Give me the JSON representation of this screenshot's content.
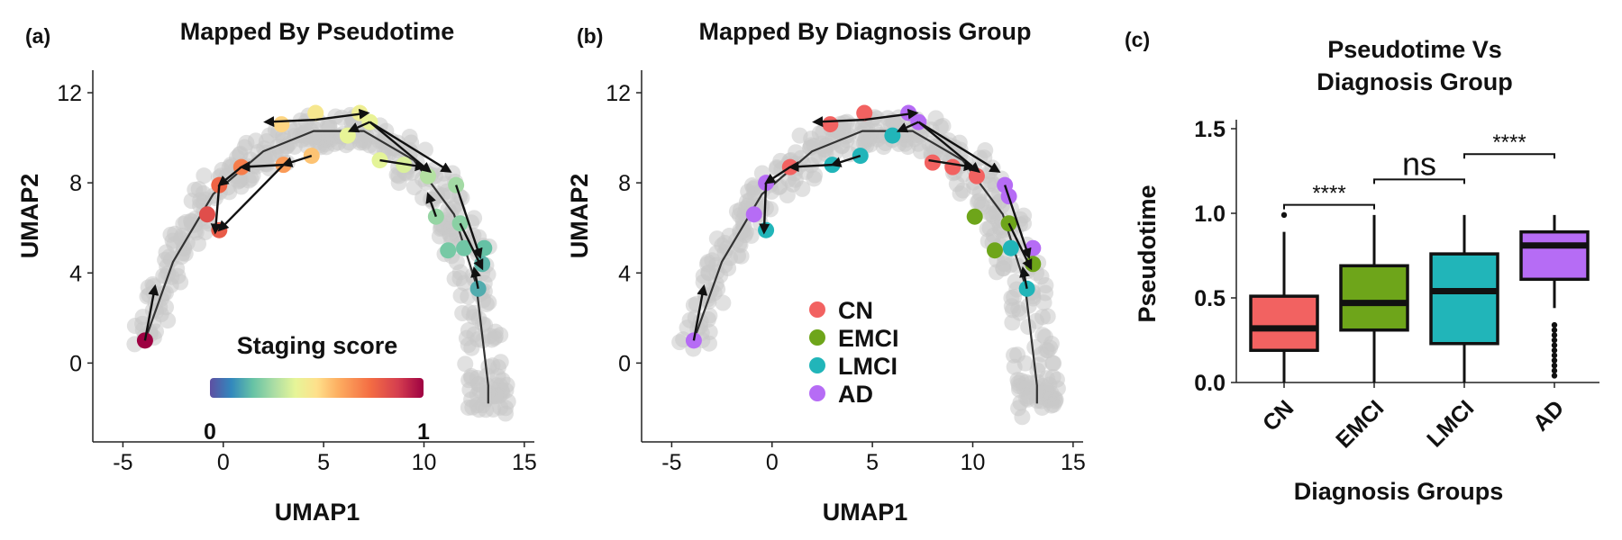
{
  "chart_data": [
    {
      "panel": "(a)",
      "type": "scatter",
      "title": "Mapped By Pseudotime",
      "xlabel": "UMAP1",
      "ylabel": "UMAP2",
      "xlim": [
        -6.5,
        15.5
      ],
      "ylim": [
        -3.5,
        13
      ],
      "xticks": [
        -5,
        0,
        5,
        10,
        15
      ],
      "xtick_labels": [
        "-5",
        "0",
        "5",
        "10",
        "15"
      ],
      "yticks": [
        0,
        4,
        8,
        12
      ],
      "ytick_labels": [
        "0",
        "4",
        "8",
        "12"
      ],
      "grid": false,
      "colorbar": {
        "title": "Staging score",
        "min_label": "0",
        "max_label": "1",
        "colormap": "Spectral_r"
      },
      "points": [
        {
          "x": -3.9,
          "y": 1.0,
          "score": 1.0
        },
        {
          "x": -0.8,
          "y": 6.6,
          "score": 0.85
        },
        {
          "x": -0.2,
          "y": 5.9,
          "score": 0.82
        },
        {
          "x": -0.2,
          "y": 7.9,
          "score": 0.8
        },
        {
          "x": 0.9,
          "y": 8.7,
          "score": 0.75
        },
        {
          "x": 3.0,
          "y": 8.8,
          "score": 0.7
        },
        {
          "x": 4.4,
          "y": 9.2,
          "score": 0.62
        },
        {
          "x": 2.9,
          "y": 10.6,
          "score": 0.58
        },
        {
          "x": 4.6,
          "y": 11.1,
          "score": 0.52
        },
        {
          "x": 6.8,
          "y": 11.1,
          "score": 0.48
        },
        {
          "x": 7.3,
          "y": 10.7,
          "score": 0.46
        },
        {
          "x": 6.2,
          "y": 10.1,
          "score": 0.45
        },
        {
          "x": 7.8,
          "y": 9.0,
          "score": 0.44
        },
        {
          "x": 9.0,
          "y": 8.8,
          "score": 0.42
        },
        {
          "x": 10.2,
          "y": 8.3,
          "score": 0.35
        },
        {
          "x": 10.6,
          "y": 6.5,
          "score": 0.3
        },
        {
          "x": 11.6,
          "y": 7.9,
          "score": 0.32
        },
        {
          "x": 11.8,
          "y": 6.2,
          "score": 0.28
        },
        {
          "x": 11.2,
          "y": 5.0,
          "score": 0.25
        },
        {
          "x": 12.0,
          "y": 5.1,
          "score": 0.24
        },
        {
          "x": 13.0,
          "y": 5.1,
          "score": 0.22
        },
        {
          "x": 12.9,
          "y": 4.4,
          "score": 0.2
        },
        {
          "x": 12.7,
          "y": 3.3,
          "score": 0.18
        }
      ],
      "arrows": [
        {
          "x0": -3.9,
          "y0": 1.0,
          "x1": -3.4,
          "y1": 3.4
        },
        {
          "x0": 0.9,
          "y0": 8.7,
          "x1": -0.2,
          "y1": 7.9
        },
        {
          "x0": -0.2,
          "y0": 7.9,
          "x1": -0.4,
          "y1": 5.8
        },
        {
          "x0": 3.0,
          "y0": 8.8,
          "x1": 0.9,
          "y1": 8.7
        },
        {
          "x0": 4.4,
          "y0": 9.2,
          "x1": 3.0,
          "y1": 8.8
        },
        {
          "x0": 3.0,
          "y0": 8.8,
          "x1": -0.2,
          "y1": 5.9
        },
        {
          "x0": 4.6,
          "y0": 10.8,
          "x1": 2.1,
          "y1": 10.7
        },
        {
          "x0": 4.6,
          "y0": 10.8,
          "x1": 7.2,
          "y1": 11.1
        },
        {
          "x0": 7.3,
          "y0": 10.7,
          "x1": 6.3,
          "y1": 10.3
        },
        {
          "x0": 7.3,
          "y0": 10.7,
          "x1": 10.3,
          "y1": 8.5
        },
        {
          "x0": 7.8,
          "y0": 9.0,
          "x1": 10.0,
          "y1": 8.7
        },
        {
          "x0": 7.3,
          "y0": 10.7,
          "x1": 11.3,
          "y1": 8.5
        },
        {
          "x0": 11.6,
          "y0": 7.9,
          "x1": 12.8,
          "y1": 4.7
        },
        {
          "x0": 10.6,
          "y0": 6.5,
          "x1": 10.2,
          "y1": 7.5
        },
        {
          "x0": 11.8,
          "y0": 6.2,
          "x1": 12.9,
          "y1": 4.2
        },
        {
          "x0": 12.7,
          "y0": 3.3,
          "x1": 12.5,
          "y1": 4.2
        }
      ],
      "trajectory": [
        [
          -3.9,
          1.0
        ],
        [
          -2.5,
          4.5
        ],
        [
          -0.5,
          7.5
        ],
        [
          2.0,
          9.4
        ],
        [
          4.5,
          10.3
        ],
        [
          7.0,
          10.3
        ],
        [
          9.5,
          9.0
        ],
        [
          11.5,
          6.6
        ],
        [
          12.6,
          3.5
        ],
        [
          13.2,
          -1.0
        ],
        [
          13.2,
          -1.8
        ]
      ],
      "background_band": "umap-cloud"
    },
    {
      "panel": "(b)",
      "type": "scatter",
      "title": "Mapped By Diagnosis Group",
      "xlabel": "UMAP1",
      "ylabel": "UMAP2",
      "xlim": [
        -6.5,
        15.5
      ],
      "ylim": [
        -3.5,
        13
      ],
      "xticks": [
        -5,
        0,
        5,
        10,
        15
      ],
      "xtick_labels": [
        "-5",
        "0",
        "5",
        "10",
        "15"
      ],
      "yticks": [
        0,
        4,
        8,
        12
      ],
      "ytick_labels": [
        "0",
        "4",
        "8",
        "12"
      ],
      "grid": false,
      "legend": {
        "placement": "center-bottom",
        "entries": [
          {
            "label": "CN",
            "color": "#f26261"
          },
          {
            "label": "EMCI",
            "color": "#6ea51a"
          },
          {
            "label": "LMCI",
            "color": "#21b5b9"
          },
          {
            "label": "AD",
            "color": "#b66cf5"
          }
        ]
      },
      "points": [
        {
          "x": -3.9,
          "y": 1.0,
          "group": "AD"
        },
        {
          "x": -0.9,
          "y": 6.6,
          "group": "AD"
        },
        {
          "x": -0.3,
          "y": 5.9,
          "group": "LMCI"
        },
        {
          "x": -0.3,
          "y": 8.0,
          "group": "AD"
        },
        {
          "x": 0.9,
          "y": 8.7,
          "group": "CN"
        },
        {
          "x": 3.0,
          "y": 8.8,
          "group": "LMCI"
        },
        {
          "x": 4.4,
          "y": 9.2,
          "group": "LMCI"
        },
        {
          "x": 2.9,
          "y": 10.6,
          "group": "CN"
        },
        {
          "x": 4.6,
          "y": 11.1,
          "group": "CN"
        },
        {
          "x": 6.8,
          "y": 11.1,
          "group": "AD"
        },
        {
          "x": 7.3,
          "y": 10.7,
          "group": "AD"
        },
        {
          "x": 6.0,
          "y": 10.1,
          "group": "LMCI"
        },
        {
          "x": 8.0,
          "y": 8.9,
          "group": "CN"
        },
        {
          "x": 9.0,
          "y": 8.7,
          "group": "CN"
        },
        {
          "x": 10.2,
          "y": 8.3,
          "group": "CN"
        },
        {
          "x": 10.1,
          "y": 6.5,
          "group": "EMCI"
        },
        {
          "x": 11.6,
          "y": 7.9,
          "group": "AD"
        },
        {
          "x": 11.8,
          "y": 7.4,
          "group": "AD"
        },
        {
          "x": 11.8,
          "y": 6.2,
          "group": "EMCI"
        },
        {
          "x": 11.1,
          "y": 5.0,
          "group": "EMCI"
        },
        {
          "x": 11.9,
          "y": 5.1,
          "group": "LMCI"
        },
        {
          "x": 13.0,
          "y": 5.1,
          "group": "AD"
        },
        {
          "x": 13.0,
          "y": 4.4,
          "group": "EMCI"
        },
        {
          "x": 12.7,
          "y": 3.3,
          "group": "LMCI"
        }
      ],
      "arrows": [
        {
          "x0": -3.9,
          "y0": 1.0,
          "x1": -3.4,
          "y1": 3.4
        },
        {
          "x0": 0.9,
          "y0": 8.7,
          "x1": -0.3,
          "y1": 8.0
        },
        {
          "x0": -0.3,
          "y0": 8.0,
          "x1": -0.4,
          "y1": 5.8
        },
        {
          "x0": 3.0,
          "y0": 8.8,
          "x1": 0.9,
          "y1": 8.7
        },
        {
          "x0": 4.4,
          "y0": 9.2,
          "x1": 3.0,
          "y1": 8.8
        },
        {
          "x0": 4.6,
          "y0": 10.8,
          "x1": 2.1,
          "y1": 10.7
        },
        {
          "x0": 4.6,
          "y0": 10.8,
          "x1": 7.2,
          "y1": 11.1
        },
        {
          "x0": 7.3,
          "y0": 10.7,
          "x1": 6.3,
          "y1": 10.3
        },
        {
          "x0": 7.3,
          "y0": 10.7,
          "x1": 10.3,
          "y1": 8.5
        },
        {
          "x0": 7.8,
          "y0": 9.0,
          "x1": 10.0,
          "y1": 8.7
        },
        {
          "x0": 7.3,
          "y0": 10.7,
          "x1": 11.3,
          "y1": 8.5
        },
        {
          "x0": 11.6,
          "y0": 7.9,
          "x1": 12.8,
          "y1": 4.7
        },
        {
          "x0": 11.8,
          "y0": 6.2,
          "x1": 12.9,
          "y1": 4.2
        },
        {
          "x0": 12.7,
          "y0": 3.3,
          "x1": 12.5,
          "y1": 4.2
        }
      ],
      "trajectory": [
        [
          -3.9,
          1.0
        ],
        [
          -2.5,
          4.5
        ],
        [
          -0.5,
          7.5
        ],
        [
          2.0,
          9.4
        ],
        [
          4.5,
          10.3
        ],
        [
          7.0,
          10.3
        ],
        [
          9.5,
          9.0
        ],
        [
          11.5,
          6.6
        ],
        [
          12.6,
          3.5
        ],
        [
          13.2,
          -1.0
        ],
        [
          13.2,
          -1.8
        ]
      ],
      "background_band": "umap-cloud"
    },
    {
      "panel": "(c)",
      "type": "box",
      "title_lines": [
        "Pseudotime Vs",
        "Diagnosis Group"
      ],
      "xlabel": "Diagnosis Groups",
      "ylabel": "Pseudotime",
      "ylim": [
        0,
        1.5
      ],
      "yticks": [
        0.0,
        0.5,
        1.0,
        1.5
      ],
      "ytick_labels": [
        "0.0",
        "0.5",
        "1.0",
        "1.5"
      ],
      "categories": [
        "CN",
        "EMCI",
        "LMCI",
        "AD"
      ],
      "boxes": [
        {
          "name": "CN",
          "color": "#f26261",
          "whisker_low": 0.0,
          "q1": 0.19,
          "median": 0.32,
          "q3": 0.51,
          "whisker_high": 0.89,
          "outliers": [
            0.99
          ]
        },
        {
          "name": "EMCI",
          "color": "#6ea51a",
          "whisker_low": 0.0,
          "q1": 0.31,
          "median": 0.47,
          "q3": 0.69,
          "whisker_high": 0.99,
          "outliers": []
        },
        {
          "name": "LMCI",
          "color": "#21b5b9",
          "whisker_low": 0.0,
          "q1": 0.23,
          "median": 0.54,
          "q3": 0.76,
          "whisker_high": 0.99,
          "outliers": []
        },
        {
          "name": "AD",
          "color": "#b66cf5",
          "whisker_low": 0.44,
          "q1": 0.61,
          "median": 0.81,
          "q3": 0.89,
          "whisker_high": 0.99,
          "outliers": [
            0.04,
            0.07,
            0.1,
            0.13,
            0.16,
            0.19,
            0.22,
            0.25,
            0.28,
            0.31,
            0.34
          ]
        }
      ],
      "significance": [
        {
          "from": "CN",
          "to": "EMCI",
          "label": "****",
          "y": 1.05
        },
        {
          "from": "EMCI",
          "to": "LMCI",
          "label": "ns",
          "y": 1.2
        },
        {
          "from": "LMCI",
          "to": "AD",
          "label": "****",
          "y": 1.35
        }
      ]
    }
  ]
}
